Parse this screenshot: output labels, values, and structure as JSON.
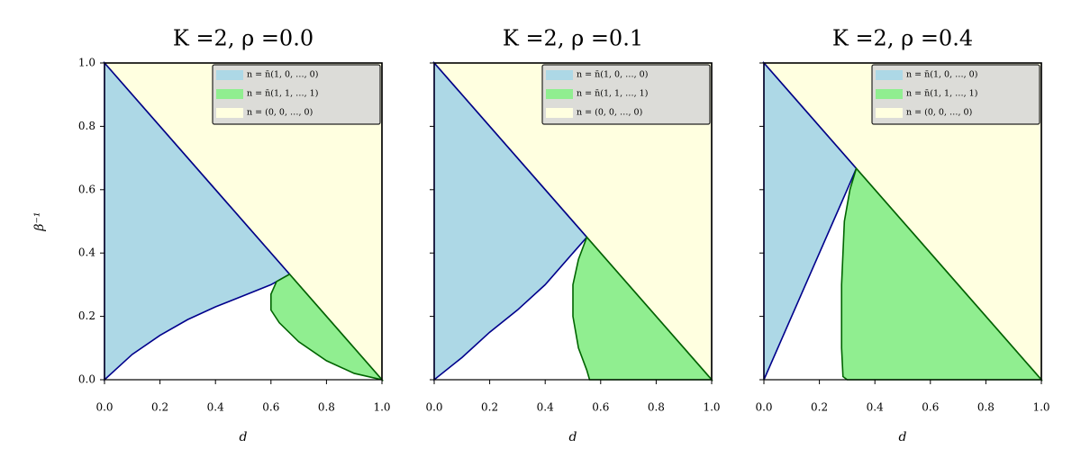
{
  "chart_data": [
    {
      "type": "area",
      "title": "K =2,  ρ =0.0",
      "xlabel": "d",
      "ylabel": "β⁻¹",
      "xlim": [
        0,
        1
      ],
      "ylim": [
        0,
        1
      ],
      "xticks": [
        {
          "value": 0,
          "label": "0.0"
        },
        0.2,
        0.4,
        0.6,
        0.8,
        {
          "value": 1,
          "label": "1.0"
        }
      ],
      "yticks": [
        {
          "value": 0,
          "label": "0.0"
        },
        0.2,
        0.4,
        0.6,
        0.8,
        {
          "value": 1,
          "label": "1.0"
        }
      ],
      "legend": "upper right",
      "series": [
        {
          "name": "n = (0, 0, …, 0)",
          "color": "#ffffe0",
          "edgecolor": "#000000",
          "x": [
            0,
            1,
            1
          ],
          "y": [
            1,
            1,
            0
          ]
        },
        {
          "name": "n = n̄(1, 0, …, 0)",
          "color": "#add8e6",
          "edgecolor": "#00008b",
          "x": [
            0,
            0,
            0.667,
            0.6,
            0.5,
            0.4,
            0.3,
            0.2,
            0.1,
            0
          ],
          "y": [
            0,
            1,
            0.333,
            0.3,
            0.265,
            0.23,
            0.19,
            0.14,
            0.08,
            0
          ]
        },
        {
          "name": "n = n̄(1, 1, …, 1)",
          "color": "#90ee90",
          "edgecolor": "#006400",
          "x": [
            0.667,
            1,
            0.9,
            0.8,
            0.7,
            0.63,
            0.6,
            0.6,
            0.62,
            0.667
          ],
          "y": [
            0.333,
            0,
            0.02,
            0.06,
            0.12,
            0.18,
            0.22,
            0.27,
            0.31,
            0.333
          ]
        }
      ]
    },
    {
      "type": "area",
      "title": "K =2,  ρ =0.1",
      "xlabel": "d",
      "xlim": [
        0,
        1
      ],
      "ylim": [
        0,
        1
      ],
      "xticks": [
        {
          "value": 0,
          "label": "0.0"
        },
        0.2,
        0.4,
        0.6,
        0.8,
        {
          "value": 1,
          "label": "1.0"
        }
      ],
      "yticks": [
        0,
        0.2,
        0.4,
        0.6,
        0.8,
        1
      ],
      "legend": "upper right",
      "series": [
        {
          "name": "n = (0, 0, …, 0)",
          "color": "#ffffe0",
          "edgecolor": "#000000",
          "x": [
            0,
            1,
            1
          ],
          "y": [
            1,
            1,
            0
          ]
        },
        {
          "name": "n = n̄(1, 0, …, 0)",
          "color": "#add8e6",
          "edgecolor": "#00008b",
          "x": [
            0,
            0,
            0.55,
            0.5,
            0.4,
            0.3,
            0.2,
            0.1,
            0
          ],
          "y": [
            0,
            1,
            0.45,
            0.4,
            0.3,
            0.22,
            0.15,
            0.07,
            0
          ]
        },
        {
          "name": "n = n̄(1, 1, …, 1)",
          "color": "#90ee90",
          "edgecolor": "#006400",
          "x": [
            0.55,
            1,
            0.56,
            0.55,
            0.52,
            0.5,
            0.5,
            0.52,
            0.55
          ],
          "y": [
            0.45,
            0,
            0,
            0.03,
            0.1,
            0.2,
            0.3,
            0.38,
            0.45
          ]
        }
      ]
    },
    {
      "type": "area",
      "title": "K =2,  ρ =0.4",
      "xlabel": "d",
      "xlim": [
        0,
        1
      ],
      "ylim": [
        0,
        1
      ],
      "xticks": [
        {
          "value": 0,
          "label": "0.0"
        },
        0.2,
        0.4,
        0.6,
        0.8,
        {
          "value": 1,
          "label": "1.0"
        }
      ],
      "yticks": [
        0,
        0.2,
        0.4,
        0.6,
        0.8,
        1
      ],
      "legend": "upper right",
      "series": [
        {
          "name": "n = (0, 0, …, 0)",
          "color": "#ffffe0",
          "edgecolor": "#000000",
          "x": [
            0,
            1,
            1
          ],
          "y": [
            1,
            1,
            0
          ]
        },
        {
          "name": "n = n̄(1, 0, …, 0)",
          "color": "#add8e6",
          "edgecolor": "#00008b",
          "x": [
            0,
            0,
            0.333,
            0.3,
            0.25,
            0.2,
            0.1,
            0
          ],
          "y": [
            0,
            1,
            0.667,
            0.6,
            0.5,
            0.4,
            0.2,
            0
          ]
        },
        {
          "name": "n = n̄(1, 1, …, 1)",
          "color": "#90ee90",
          "edgecolor": "#006400",
          "x": [
            0.333,
            1,
            0.3,
            0.285,
            0.28,
            0.28,
            0.29,
            0.31,
            0.333
          ],
          "y": [
            0.667,
            0,
            0,
            0.01,
            0.1,
            0.3,
            0.5,
            0.6,
            0.667
          ]
        }
      ]
    }
  ]
}
